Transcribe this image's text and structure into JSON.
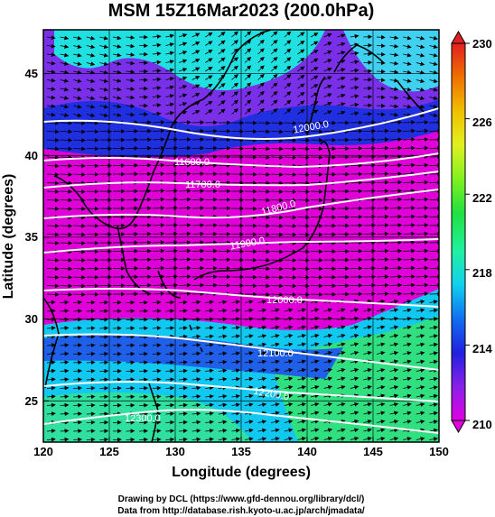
{
  "title": "MSM 15Z16Mar2023 (200.0hPa)",
  "xlabel": "Longitude (degrees)",
  "ylabel": "Latitude  (degrees)",
  "credit_line1": "Drawing by DCL (https://www.gfd-dennou.org/library/dcl/)",
  "credit_line2": "Data from http://database.rish.kyoto-u.ac.jp/arch/jmadata/",
  "chart_data": {
    "type": "heatmap",
    "title": "MSM 15Z16Mar2023 (200.0hPa)",
    "xlabel": "Longitude (degrees)",
    "ylabel": "Latitude  (degrees)",
    "xlim": [
      120,
      150
    ],
    "ylim": [
      22.4,
      47.6
    ],
    "x_ticks": [
      "120",
      "125",
      "130",
      "135",
      "140",
      "145",
      "150"
    ],
    "x_tick_values": [
      120,
      125,
      130,
      135,
      140,
      145,
      150
    ],
    "y_ticks": [
      "25",
      "30",
      "35",
      "40",
      "45"
    ],
    "y_tick_values": [
      25,
      30,
      35,
      40,
      45
    ],
    "colorbar": {
      "min": 210,
      "max": 230,
      "tick_labels": [
        "210",
        "214",
        "218",
        "222",
        "226",
        "230"
      ],
      "tick_values": [
        210,
        214,
        218,
        222,
        226,
        230
      ],
      "colors": [
        "#e000e0",
        "#8a20e8",
        "#2020e0",
        "#1070f0",
        "#10d0f0",
        "#20f0a0",
        "#20e040",
        "#80f020",
        "#e0f020",
        "#f0c000",
        "#f07000",
        "#e02020"
      ]
    },
    "contours": [
      {
        "label": "11600.0",
        "label_lon": 130.6,
        "label_lat": 40.8
      },
      {
        "label": "11700.0",
        "label_lon": 132.0,
        "label_lat": 39.3
      },
      {
        "label": "11800.0",
        "label_lon": 140.0,
        "label_lat": 37.6
      },
      {
        "label": "11900.0",
        "label_lon": 136.0,
        "label_lat": 35.3
      },
      {
        "label": "12000.0",
        "label_lon": 139.5,
        "label_lat": 32.2
      },
      {
        "label": "12100.0",
        "label_lon": 138.5,
        "label_lat": 27.6
      },
      {
        "label": "12200.0",
        "label_lon": 138.0,
        "label_lat": 24.8
      },
      {
        "label": "12300.0",
        "label_lon": 126.5,
        "label_lat": 22.8
      },
      {
        "label": "12000.0",
        "label_lon": 143.5,
        "label_lat": 42.5
      }
    ],
    "grid": true,
    "vectors": "wind arrows, predominantly westerly"
  }
}
